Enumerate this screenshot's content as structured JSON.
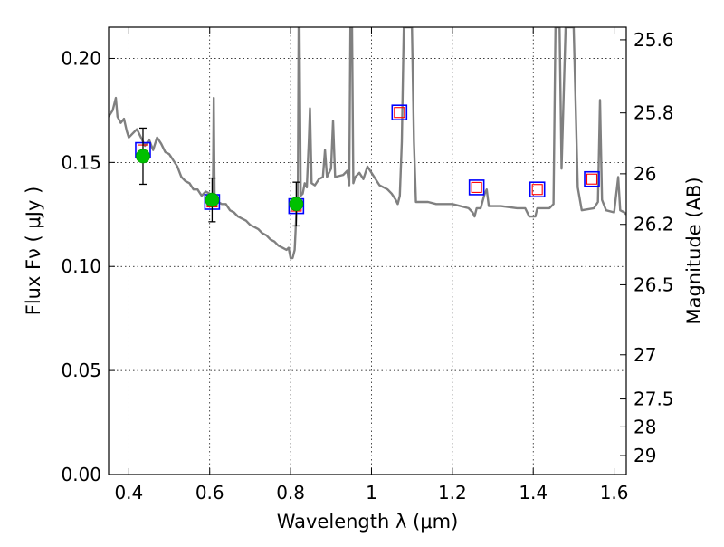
{
  "chart_data": {
    "type": "scatter",
    "title": "",
    "xlabel": "Wavelength  λ (μm)",
    "ylabel": "Flux  Fν  ( μJy )",
    "y2label": "Magnitude (AB)",
    "xlim": [
      0.35,
      1.63
    ],
    "ylim": [
      0.0,
      0.215
    ],
    "grid": true,
    "x_ticks": [
      0.4,
      0.6,
      0.8,
      1.0,
      1.2,
      1.4,
      1.6
    ],
    "x_tick_labels": [
      "0.4",
      "0.6",
      "0.8",
      "1",
      "1.2",
      "1.4",
      "1.6"
    ],
    "y_ticks": [
      0.0,
      0.05,
      0.1,
      0.15,
      0.2
    ],
    "y_tick_labels": [
      "0.00",
      "0.05",
      "0.10",
      "0.15",
      "0.20"
    ],
    "y2_ticks": [
      {
        "label": "25.6",
        "mag": 25.6
      },
      {
        "label": "25.8",
        "mag": 25.8
      },
      {
        "label": "26",
        "mag": 26.0
      },
      {
        "label": "26.2",
        "mag": 26.2
      },
      {
        "label": "26.5",
        "mag": 26.5
      },
      {
        "label": "27",
        "mag": 27.0
      },
      {
        "label": "27.5",
        "mag": 27.5
      },
      {
        "label": "28",
        "mag": 28.0
      },
      {
        "label": "29",
        "mag": 29.0
      }
    ],
    "colors": {
      "model_line": "#808080",
      "observed_fill": "#00c000",
      "observed_edge": "#00a000",
      "model_box_outer": "#0000ff",
      "model_box_inner": "#ff0000",
      "error_bar": "#000000",
      "grid": "#000000"
    },
    "series": [
      {
        "kind": "model_spectrum",
        "points": [
          [
            0.35,
            0.172
          ],
          [
            0.36,
            0.175
          ],
          [
            0.368,
            0.181
          ],
          [
            0.372,
            0.172
          ],
          [
            0.38,
            0.169
          ],
          [
            0.388,
            0.171
          ],
          [
            0.395,
            0.165
          ],
          [
            0.4,
            0.162
          ],
          [
            0.41,
            0.164
          ],
          [
            0.42,
            0.166
          ],
          [
            0.43,
            0.162
          ],
          [
            0.44,
            0.158
          ],
          [
            0.45,
            0.161
          ],
          [
            0.46,
            0.156
          ],
          [
            0.47,
            0.162
          ],
          [
            0.48,
            0.159
          ],
          [
            0.49,
            0.155
          ],
          [
            0.5,
            0.154
          ],
          [
            0.51,
            0.151
          ],
          [
            0.52,
            0.148
          ],
          [
            0.53,
            0.143
          ],
          [
            0.54,
            0.141
          ],
          [
            0.55,
            0.14
          ],
          [
            0.56,
            0.137
          ],
          [
            0.57,
            0.137
          ],
          [
            0.58,
            0.134
          ],
          [
            0.59,
            0.136
          ],
          [
            0.6,
            0.135
          ],
          [
            0.605,
            0.134
          ],
          [
            0.608,
            0.135
          ],
          [
            0.61,
            0.181
          ],
          [
            0.612,
            0.135
          ],
          [
            0.62,
            0.131
          ],
          [
            0.63,
            0.13
          ],
          [
            0.64,
            0.13
          ],
          [
            0.65,
            0.127
          ],
          [
            0.66,
            0.126
          ],
          [
            0.67,
            0.124
          ],
          [
            0.68,
            0.123
          ],
          [
            0.69,
            0.122
          ],
          [
            0.7,
            0.12
          ],
          [
            0.71,
            0.119
          ],
          [
            0.72,
            0.118
          ],
          [
            0.73,
            0.116
          ],
          [
            0.74,
            0.115
          ],
          [
            0.75,
            0.113
          ],
          [
            0.76,
            0.112
          ],
          [
            0.77,
            0.11
          ],
          [
            0.78,
            0.109
          ],
          [
            0.79,
            0.108
          ],
          [
            0.795,
            0.109
          ],
          [
            0.8,
            0.104
          ],
          [
            0.805,
            0.104
          ],
          [
            0.81,
            0.108
          ],
          [
            0.815,
            0.128
          ],
          [
            0.818,
            0.133
          ],
          [
            0.82,
            0.215
          ],
          [
            0.822,
            0.215
          ],
          [
            0.825,
            0.134
          ],
          [
            0.83,
            0.135
          ],
          [
            0.835,
            0.14
          ],
          [
            0.84,
            0.138
          ],
          [
            0.845,
            0.16
          ],
          [
            0.848,
            0.176
          ],
          [
            0.852,
            0.14
          ],
          [
            0.86,
            0.139
          ],
          [
            0.87,
            0.142
          ],
          [
            0.88,
            0.143
          ],
          [
            0.885,
            0.156
          ],
          [
            0.89,
            0.143
          ],
          [
            0.9,
            0.147
          ],
          [
            0.905,
            0.17
          ],
          [
            0.91,
            0.143
          ],
          [
            0.93,
            0.144
          ],
          [
            0.94,
            0.146
          ],
          [
            0.945,
            0.139
          ],
          [
            0.948,
            0.215
          ],
          [
            0.952,
            0.215
          ],
          [
            0.955,
            0.14
          ],
          [
            0.96,
            0.143
          ],
          [
            0.97,
            0.145
          ],
          [
            0.98,
            0.142
          ],
          [
            0.99,
            0.148
          ],
          [
            1.0,
            0.145
          ],
          [
            1.02,
            0.139
          ],
          [
            1.04,
            0.137
          ],
          [
            1.05,
            0.135
          ],
          [
            1.06,
            0.132
          ],
          [
            1.065,
            0.13
          ],
          [
            1.07,
            0.134
          ],
          [
            1.075,
            0.16
          ],
          [
            1.08,
            0.215
          ],
          [
            1.1,
            0.215
          ],
          [
            1.105,
            0.16
          ],
          [
            1.11,
            0.131
          ],
          [
            1.14,
            0.131
          ],
          [
            1.16,
            0.13
          ],
          [
            1.2,
            0.13
          ],
          [
            1.24,
            0.128
          ],
          [
            1.25,
            0.126
          ],
          [
            1.255,
            0.124
          ],
          [
            1.26,
            0.128
          ],
          [
            1.27,
            0.128
          ],
          [
            1.28,
            0.135
          ],
          [
            1.285,
            0.137
          ],
          [
            1.29,
            0.129
          ],
          [
            1.32,
            0.129
          ],
          [
            1.36,
            0.128
          ],
          [
            1.38,
            0.128
          ],
          [
            1.39,
            0.124
          ],
          [
            1.405,
            0.124
          ],
          [
            1.41,
            0.128
          ],
          [
            1.44,
            0.128
          ],
          [
            1.45,
            0.13
          ],
          [
            1.455,
            0.215
          ],
          [
            1.465,
            0.215
          ],
          [
            1.47,
            0.147
          ],
          [
            1.48,
            0.215
          ],
          [
            1.5,
            0.215
          ],
          [
            1.51,
            0.138
          ],
          [
            1.52,
            0.127
          ],
          [
            1.55,
            0.128
          ],
          [
            1.56,
            0.131
          ],
          [
            1.565,
            0.18
          ],
          [
            1.57,
            0.132
          ],
          [
            1.58,
            0.127
          ],
          [
            1.6,
            0.126
          ],
          [
            1.61,
            0.143
          ],
          [
            1.615,
            0.127
          ],
          [
            1.625,
            0.126
          ],
          [
            1.63,
            0.125
          ]
        ]
      },
      {
        "kind": "observed_photometry",
        "points": [
          {
            "x": 0.435,
            "y": 0.153,
            "yerr": 0.0135
          },
          {
            "x": 0.606,
            "y": 0.132,
            "yerr": 0.0105
          },
          {
            "x": 0.814,
            "y": 0.13,
            "yerr": 0.0105
          }
        ]
      },
      {
        "kind": "model_photometry",
        "points": [
          {
            "x": 0.435,
            "y": 0.156
          },
          {
            "x": 0.606,
            "y": 0.131
          },
          {
            "x": 0.814,
            "y": 0.129
          },
          {
            "x": 1.069,
            "y": 0.174
          },
          {
            "x": 1.26,
            "y": 0.138
          },
          {
            "x": 1.41,
            "y": 0.137
          },
          {
            "x": 1.545,
            "y": 0.142
          }
        ]
      }
    ]
  }
}
